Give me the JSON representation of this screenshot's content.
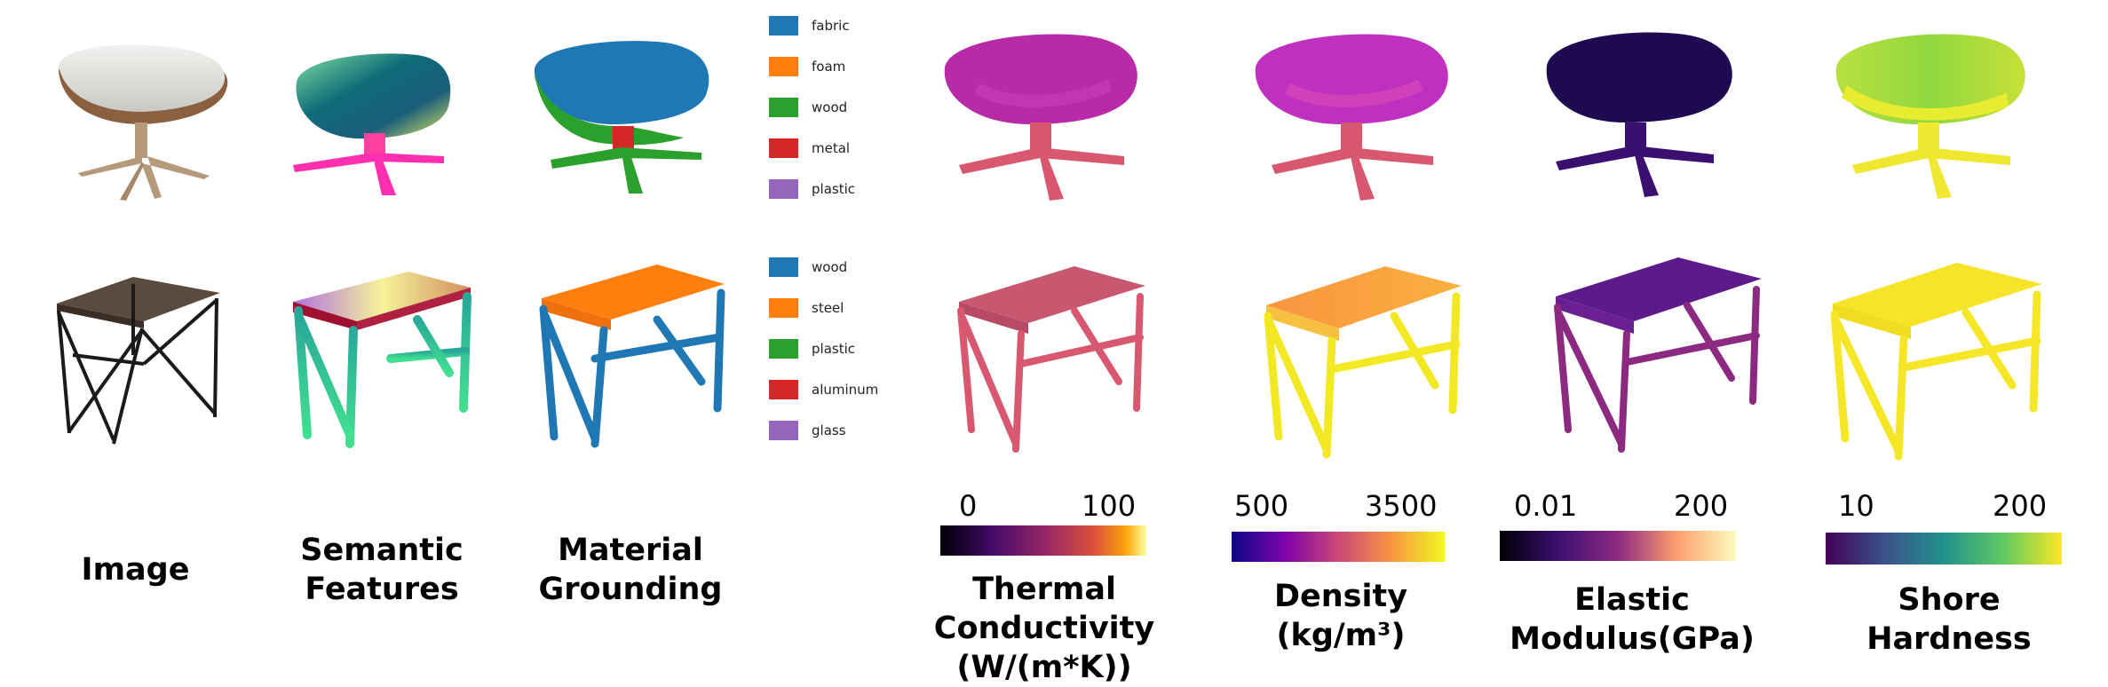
{
  "columns": {
    "image": "Image",
    "semantic_line1": "Semantic",
    "semantic_line2": "Features",
    "material_line1": "Material",
    "material_line2": "Grounding"
  },
  "legends": {
    "ottoman": [
      {
        "label": "fabric",
        "color": "#1f77b4"
      },
      {
        "label": "foam",
        "color": "#ff7f0e"
      },
      {
        "label": "wood",
        "color": "#2ca02c"
      },
      {
        "label": "metal",
        "color": "#d62728"
      },
      {
        "label": "plastic",
        "color": "#9467bd"
      }
    ],
    "desk": [
      {
        "label": "wood",
        "color": "#1f77b4"
      },
      {
        "label": "steel",
        "color": "#ff7f0e"
      },
      {
        "label": "plastic",
        "color": "#2ca02c"
      },
      {
        "label": "aluminum",
        "color": "#d62728"
      },
      {
        "label": "glass",
        "color": "#9467bd"
      }
    ]
  },
  "properties": {
    "thermal": {
      "title_line1": "Thermal Conductivity",
      "title_line2": "(W/(m*K))",
      "min": "0",
      "max": "100",
      "colormap": "inferno"
    },
    "density": {
      "title_line1": "Density (kg/m³)",
      "min": "500",
      "max": "3500",
      "colormap": "plasma"
    },
    "elastic": {
      "title_line1": "Elastic Modulus(GPa)",
      "min": "0.01",
      "max": "200",
      "colormap": "magma"
    },
    "shore": {
      "title_line1": "Shore Hardness",
      "min": "10",
      "max": "200",
      "colormap": "viridis"
    }
  },
  "colors": {
    "fabric": "#1f77b4",
    "foam": "#ff7f0e",
    "wood": "#2ca02c",
    "metal": "#d62728",
    "plastic": "#9467bd",
    "cushion_gray": "#dcdcd8",
    "shell_brown": "#8a6040",
    "base_tan": "#b49a7a",
    "desk_top": "#5b4a3e",
    "desk_frame": "#1a1a1a"
  }
}
